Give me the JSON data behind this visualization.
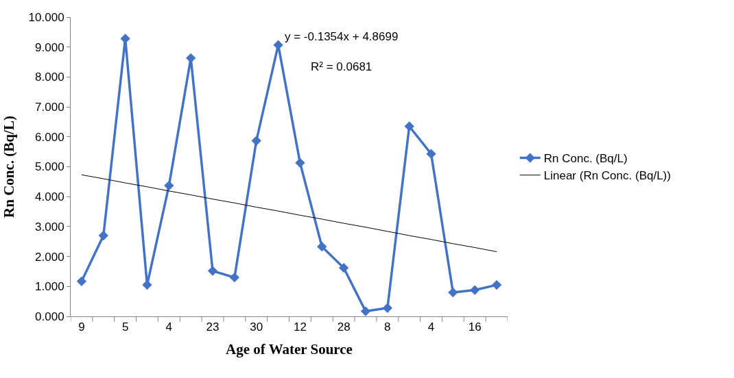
{
  "chart_data": {
    "type": "line",
    "xlabel": "Age of Water Source",
    "ylabel": "Rn Conc. (Bq/L)",
    "categories": [
      "9",
      null,
      "5",
      null,
      "4",
      null,
      "23",
      null,
      "30",
      null,
      "12",
      null,
      "28",
      null,
      "8",
      null,
      "4",
      null,
      "16",
      null
    ],
    "series": [
      {
        "name": "Rn Conc. (Bq/L)",
        "color": "#4472c4",
        "marker": "diamond",
        "values": [
          1.17,
          2.7,
          9.28,
          1.05,
          4.37,
          8.63,
          1.52,
          1.3,
          5.87,
          9.07,
          5.13,
          2.33,
          1.62,
          0.17,
          0.28,
          6.35,
          5.43,
          0.8,
          0.88,
          1.05
        ]
      },
      {
        "name": "Linear (Rn Conc. (Bq/L))",
        "color": "#000000",
        "marker": "none",
        "values": [
          4.73,
          4.6,
          4.46,
          4.33,
          4.19,
          4.06,
          3.92,
          3.79,
          3.65,
          3.52,
          3.38,
          3.25,
          3.11,
          2.98,
          2.84,
          2.7,
          2.57,
          2.43,
          2.3,
          2.16
        ]
      }
    ],
    "ylim": [
      0,
      10
    ],
    "yticks": [
      {
        "value": 0,
        "label": "0.000"
      },
      {
        "value": 1,
        "label": "1.000"
      },
      {
        "value": 2,
        "label": "2.000"
      },
      {
        "value": 3,
        "label": "3.000"
      },
      {
        "value": 4,
        "label": "4.000"
      },
      {
        "value": 5,
        "label": "5.000"
      },
      {
        "value": 6,
        "label": "6.000"
      },
      {
        "value": 7,
        "label": "7.000"
      },
      {
        "value": 8,
        "label": "8.000"
      },
      {
        "value": 9,
        "label": "9.000"
      },
      {
        "value": 10,
        "label": "10.000"
      }
    ],
    "annotations": [
      "y = -0.1354x + 4.8699",
      "R² = 0.0681"
    ],
    "legend": "right"
  }
}
